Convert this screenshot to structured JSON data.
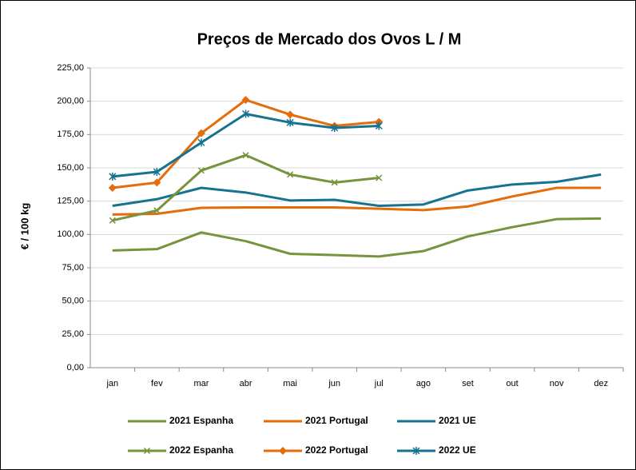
{
  "chart_data": {
    "type": "line",
    "title": "Preços de Mercado dos Ovos L / M",
    "y_label": "€ / 100 kg",
    "categories": [
      "jan",
      "fev",
      "mar",
      "abr",
      "mai",
      "jun",
      "jul",
      "ago",
      "set",
      "out",
      "nov",
      "dez"
    ],
    "ylim": [
      0,
      225
    ],
    "yticks": [
      {
        "value": 0,
        "label": "0,00"
      },
      {
        "value": 25,
        "label": "25,00"
      },
      {
        "value": 50,
        "label": "50,00"
      },
      {
        "value": 75,
        "label": "75,00"
      },
      {
        "value": 100,
        "label": "100,00"
      },
      {
        "value": 125,
        "label": "125,00"
      },
      {
        "value": 150,
        "label": "150,00"
      },
      {
        "value": 175,
        "label": "175,00"
      },
      {
        "value": 200,
        "label": "200,00"
      },
      {
        "value": 225,
        "label": "225,00"
      }
    ],
    "grid": true,
    "series": [
      {
        "name": "2021 Espanha",
        "color": "#77933c",
        "marker": "none",
        "values": [
          88,
          89,
          101.5,
          95,
          85.5,
          84.5,
          83.5,
          87.5,
          98.5,
          105.5,
          111.5,
          112
        ]
      },
      {
        "name": "2021 Portugal",
        "color": "#e46c0a",
        "marker": "none",
        "values": [
          115,
          115.5,
          120,
          120.3,
          120.3,
          120.3,
          119.3,
          118.3,
          121,
          128.5,
          135,
          135
        ]
      },
      {
        "name": "2021 UE",
        "color": "#17728f",
        "marker": "none",
        "values": [
          121.5,
          126.5,
          135,
          131.5,
          125.5,
          126,
          121.5,
          122.5,
          133,
          137.5,
          139.5,
          145
        ]
      },
      {
        "name": "2022 Espanha",
        "color": "#77933c",
        "marker": "x",
        "values": [
          110.5,
          118,
          148,
          159.5,
          145,
          139,
          142.5,
          null,
          null,
          null,
          null,
          null
        ]
      },
      {
        "name": "2022 Portugal",
        "color": "#e46c0a",
        "marker": "diamond",
        "values": [
          135,
          139,
          176,
          201,
          190,
          181.5,
          184.5,
          null,
          null,
          null,
          null,
          null
        ]
      },
      {
        "name": "2022 UE",
        "color": "#17728f",
        "marker": "star",
        "values": [
          143.5,
          147,
          169,
          190.5,
          184,
          180,
          181.5,
          null,
          null,
          null,
          null,
          null
        ]
      }
    ]
  }
}
